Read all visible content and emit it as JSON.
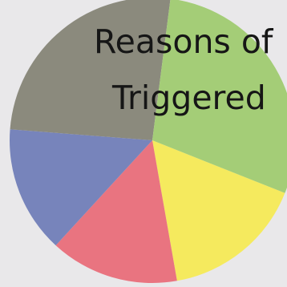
{
  "chart_data": {
    "type": "pie",
    "title_lines": [
      "Reasons of",
      "Triggered"
    ],
    "slices": [
      {
        "value": 16.2,
        "color": "#f5ea5e"
      },
      {
        "value": 14.6,
        "color": "#e97480"
      },
      {
        "value": 14.4,
        "color": "#7784bb"
      },
      {
        "value": 25.8,
        "color": "#8b8a7d"
      },
      {
        "value": 29.0,
        "color": "#a4cd77"
      }
    ],
    "start_angle_deg": 21.7
  }
}
